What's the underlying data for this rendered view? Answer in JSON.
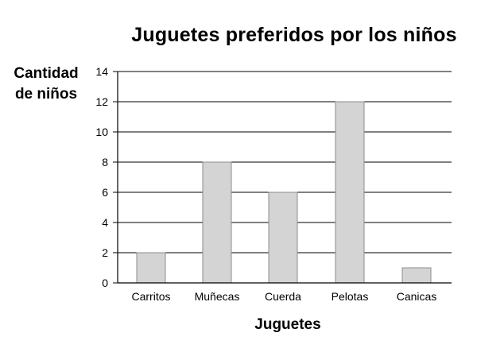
{
  "chart_data": {
    "type": "bar",
    "title": "Juguetes preferidos por los niños",
    "ylabel_lines": [
      "Cantidad",
      "de niños"
    ],
    "xlabel": "Juguetes",
    "categories": [
      "Carritos",
      "Muñecas",
      "Cuerda",
      "Pelotas",
      "Canicas"
    ],
    "values": [
      2,
      8,
      6,
      12,
      1
    ],
    "yticks": [
      0,
      2,
      4,
      6,
      8,
      10,
      12,
      14
    ],
    "ylim": [
      0,
      14
    ],
    "grid": true,
    "legend": "none",
    "colors": {
      "bar_fill": "#d4d4d4",
      "bar_stroke": "#8c8c8c",
      "grid": "#000000",
      "axis": "#000000",
      "text": "#000000"
    }
  }
}
